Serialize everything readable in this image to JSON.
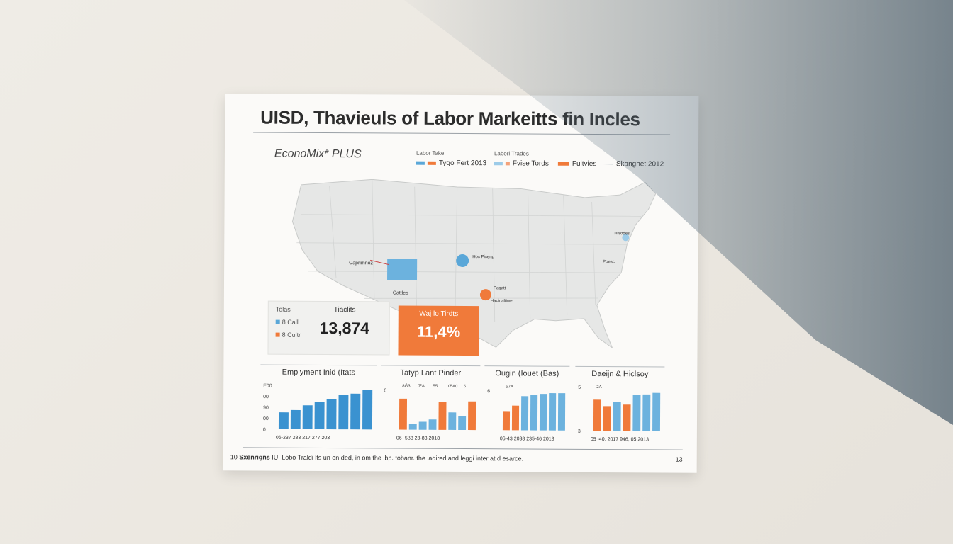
{
  "doc": {
    "title": "UISD, Thavieuls of Labor Markeitts fin Incles",
    "brand": "EconoMix* PLUS",
    "legend": {
      "headers": [
        "Labor Take",
        "Labori Trades"
      ],
      "items": [
        {
          "label": "Tygo Fert 2013",
          "colors": [
            "#5aa7d8",
            "#f07a3a"
          ]
        },
        {
          "label": "Fvise Tords",
          "colors": [
            "#9ccbe8",
            "#f3a27a"
          ]
        },
        {
          "label": "Fuitvies",
          "colors": [
            "#f07a3a"
          ]
        },
        {
          "label": "Skanghet 2012",
          "colors": [
            "#2c4a66"
          ]
        }
      ]
    },
    "map": {
      "labels": {
        "capital": "Caprimnoz",
        "capital_sub": "Cattles",
        "center": "Hos Pisenp",
        "south": "Pagatt",
        "south_sub": "Hacinaltiwe",
        "northeast": "Hisodes",
        "east": "Poesc"
      },
      "markers": {
        "blue": "#5aa7d8",
        "orange": "#f07a3a"
      }
    },
    "kpi_left": {
      "header": "Tolas",
      "legend": [
        "8 Call",
        "8 Cultr"
      ],
      "label": "Tiaclits",
      "value": "13,874"
    },
    "kpi_orange": {
      "label": "Waj lo Tirdts",
      "value": "11,4%"
    },
    "panels": [
      {
        "title": "Emplyment Inid (Itats",
        "y_ticks": [
          "E00",
          "00",
          "90",
          "00",
          "0"
        ],
        "x_label": "06-237 283 217 277 203",
        "bars": [
          {
            "v": 0.42,
            "c": "#3a92d0"
          },
          {
            "v": 0.48,
            "c": "#3a92d0"
          },
          {
            "v": 0.6,
            "c": "#3a92d0"
          },
          {
            "v": 0.68,
            "c": "#3a92d0"
          },
          {
            "v": 0.76,
            "c": "#3a92d0"
          },
          {
            "v": 0.86,
            "c": "#3a92d0"
          },
          {
            "v": 0.9,
            "c": "#3a92d0"
          },
          {
            "v": 1.0,
            "c": "#3a92d0"
          }
        ]
      },
      {
        "title": "Tatyp Lant Pinder",
        "y_ticks": [
          "6"
        ],
        "annotations": [
          "8Ğ3",
          "ŒA",
          "55",
          "ŒA0",
          "5"
        ],
        "x_label": "06 -5β3 23-83 2018",
        "bars": [
          {
            "v": 0.78,
            "c": "#f07a3a"
          },
          {
            "v": 0.14,
            "c": "#6cb2de"
          },
          {
            "v": 0.2,
            "c": "#6cb2de"
          },
          {
            "v": 0.26,
            "c": "#6cb2de"
          },
          {
            "v": 0.7,
            "c": "#f07a3a"
          },
          {
            "v": 0.44,
            "c": "#6cb2de"
          },
          {
            "v": 0.34,
            "c": "#6cb2de"
          },
          {
            "v": 0.72,
            "c": "#f07a3a"
          }
        ]
      },
      {
        "title": "Ougin (Iouet (Bas)",
        "y_ticks": [
          "6"
        ],
        "annotations": [
          "57A"
        ],
        "x_label": "06-43 2038 235-46 2018",
        "bars": [
          {
            "v": 0.48,
            "c": "#f07a3a"
          },
          {
            "v": 0.62,
            "c": "#f07a3a"
          },
          {
            "v": 0.86,
            "c": "#6cb2de"
          },
          {
            "v": 0.9,
            "c": "#6cb2de"
          },
          {
            "v": 0.92,
            "c": "#6cb2de"
          },
          {
            "v": 0.94,
            "c": "#6cb2de"
          },
          {
            "v": 0.94,
            "c": "#6cb2de"
          }
        ]
      },
      {
        "title": "Daeijn & Hiclsoy",
        "y_ticks": [
          "5",
          "3"
        ],
        "annotations": [
          "2A"
        ],
        "x_label": "05 -40, 2017  946, 05 2013",
        "bars": [
          {
            "v": 0.78,
            "c": "#f07a3a"
          },
          {
            "v": 0.62,
            "c": "#f07a3a"
          },
          {
            "v": 0.72,
            "c": "#6cb2de"
          },
          {
            "v": 0.66,
            "c": "#f07a3a"
          },
          {
            "v": 0.9,
            "c": "#6cb2de"
          },
          {
            "v": 0.92,
            "c": "#6cb2de"
          },
          {
            "v": 0.96,
            "c": "#6cb2de"
          }
        ]
      }
    ],
    "footer": {
      "left_num": "10",
      "text_bold": "Sxenrigns",
      "text": "IU. Lobo Traldi lts un on ded, in om the lbp. tobanr. the ladired and leggi inter at d esarce.",
      "page_num": "13"
    }
  }
}
